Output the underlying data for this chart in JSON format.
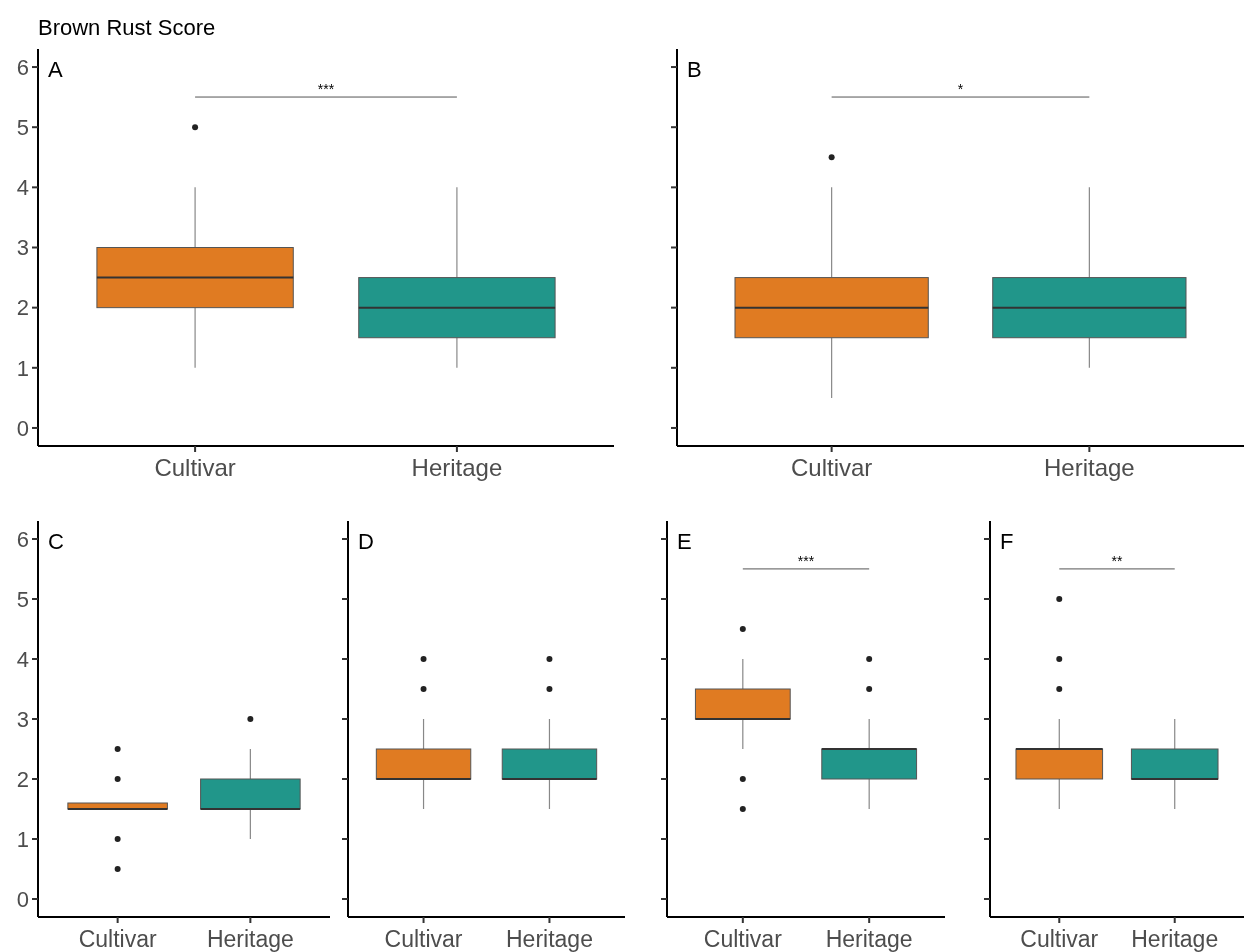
{
  "chart_data": [
    {
      "type": "box",
      "title": "A",
      "ylabel": "Brown Rust Score",
      "categories": [
        "Cultivar",
        "Heritage"
      ],
      "colors": [
        "#e07b22",
        "#21968a"
      ],
      "ylim": [
        -0.3,
        6.3
      ],
      "yticks": [
        0,
        1,
        2,
        3,
        4,
        5,
        6
      ],
      "annotations": [
        "***"
      ],
      "boxes": [
        {
          "low": 1,
          "q1": 2,
          "median": 2.5,
          "q3": 3,
          "high": 4,
          "outliers": [
            5
          ]
        },
        {
          "low": 1,
          "q1": 1.5,
          "median": 2,
          "q3": 2.5,
          "high": 4
        }
      ]
    },
    {
      "type": "box",
      "title": "B",
      "categories": [
        "Cultivar",
        "Heritage"
      ],
      "colors": [
        "#e07b22",
        "#21968a"
      ],
      "ylim": [
        -0.3,
        6.3
      ],
      "yticks": [
        {
          "value": 0,
          "label": null
        },
        {
          "value": 1,
          "label": null
        },
        {
          "value": 2,
          "label": null
        },
        {
          "value": 3,
          "label": null
        },
        {
          "value": 4,
          "label": null
        },
        {
          "value": 5,
          "label": null
        },
        {
          "value": 6,
          "label": null
        }
      ],
      "tick_labels": "x",
      "annotations": [
        "*"
      ],
      "boxes": [
        {
          "low": 0.5,
          "q1": 1.5,
          "median": 2,
          "q3": 2.5,
          "high": 4,
          "outliers": [
            4.5
          ]
        },
        {
          "low": 1,
          "q1": 1.5,
          "median": 2,
          "q3": 2.5,
          "high": 4
        }
      ]
    },
    {
      "type": "box",
      "title": "C",
      "categories": [
        "Cultivar",
        "Heritage"
      ],
      "colors": [
        "#e07b22",
        "#21968a"
      ],
      "ylim": [
        -0.3,
        6.3
      ],
      "yticks": [
        0,
        1,
        2,
        3,
        4,
        5,
        6
      ],
      "boxes": [
        {
          "low": 1.5,
          "q1": 1.5,
          "median": 1.5,
          "q3": 1.6,
          "high": 1.6,
          "outliers": [
            0.5,
            1,
            2,
            2.5
          ]
        },
        {
          "low": 1,
          "q1": 1.5,
          "median": 1.5,
          "q3": 2,
          "high": 2.5,
          "outliers": [
            3
          ]
        }
      ]
    },
    {
      "type": "box",
      "title": "D",
      "categories": [
        "Cultivar",
        "Heritage"
      ],
      "colors": [
        "#e07b22",
        "#21968a"
      ],
      "ylim": [
        -0.3,
        6.3
      ],
      "yticks": [
        {
          "value": 0,
          "label": null
        },
        {
          "value": 1,
          "label": null
        },
        {
          "value": 2,
          "label": null
        },
        {
          "value": 3,
          "label": null
        },
        {
          "value": 4,
          "label": null
        },
        {
          "value": 5,
          "label": null
        },
        {
          "value": 6,
          "label": null
        }
      ],
      "tick_labels": "x",
      "boxes": [
        {
          "low": 1.5,
          "q1": 2,
          "median": 2,
          "q3": 2.5,
          "high": 3,
          "outliers": [
            3.5,
            4
          ]
        },
        {
          "low": 1.5,
          "q1": 2,
          "median": 2,
          "q3": 2.5,
          "high": 3,
          "outliers": [
            3.5,
            4
          ]
        }
      ]
    },
    {
      "type": "box",
      "title": "E",
      "categories": [
        "Cultivar",
        "Heritage"
      ],
      "colors": [
        "#e07b22",
        "#21968a"
      ],
      "ylim": [
        -0.3,
        6.3
      ],
      "yticks": [
        {
          "value": 0,
          "label": null
        },
        {
          "value": 1,
          "label": null
        },
        {
          "value": 2,
          "label": null
        },
        {
          "value": 3,
          "label": null
        },
        {
          "value": 4,
          "label": null
        },
        {
          "value": 5,
          "label": null
        },
        {
          "value": 6,
          "label": null
        }
      ],
      "tick_labels": "x",
      "annotations": [
        "***"
      ],
      "boxes": [
        {
          "low": 2.5,
          "q1": 3,
          "median": 3,
          "q3": 3.5,
          "high": 4,
          "outliers": [
            1.5,
            2,
            4.5
          ]
        },
        {
          "low": 1.5,
          "q1": 2,
          "median": 2.5,
          "q3": 2.5,
          "high": 3,
          "outliers": [
            3.5,
            4
          ]
        }
      ]
    },
    {
      "type": "box",
      "title": "F",
      "categories": [
        "Cultivar",
        "Heritage"
      ],
      "colors": [
        "#e07b22",
        "#21968a"
      ],
      "ylim": [
        -0.3,
        6.3
      ],
      "yticks": [
        {
          "value": 0,
          "label": null
        },
        {
          "value": 1,
          "label": null
        },
        {
          "value": 2,
          "label": null
        },
        {
          "value": 3,
          "label": null
        },
        {
          "value": 4,
          "label": null
        },
        {
          "value": 5,
          "label": null
        },
        {
          "value": 6,
          "label": null
        }
      ],
      "tick_labels": "x",
      "annotations": [
        "**"
      ],
      "boxes": [
        {
          "low": 1.5,
          "q1": 2,
          "median": 2.5,
          "q3": 2.5,
          "high": 3,
          "outliers": [
            3.5,
            4,
            5
          ]
        },
        {
          "low": 1.5,
          "q1": 2,
          "median": 2,
          "q3": 2.5,
          "high": 3
        }
      ]
    }
  ]
}
